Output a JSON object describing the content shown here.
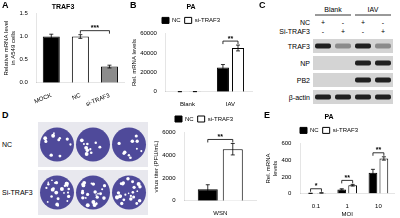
{
  "chart_data": [
    {
      "panel": "A",
      "type": "bar",
      "title": "TRAF3",
      "categories": [
        "MOCK",
        "NC",
        "si-TRAF3"
      ],
      "values": [
        1.0,
        1.0,
        0.35
      ],
      "errors": [
        0.05,
        0.04,
        0.03
      ],
      "colors": [
        "#000000",
        "#ffffff",
        "#8c8c8c"
      ],
      "y_label": "Relative mRNA level in A549 cells",
      "ylim": [
        0,
        1.5
      ],
      "yticks": [
        {
          "value": 0,
          "label": "0.0"
        },
        {
          "value": 0.5,
          "label": "0.5"
        },
        {
          "value": 1,
          "label": "1.0"
        },
        {
          "value": 1.5,
          "label": "1.5"
        }
      ],
      "annotations": [
        {
          "text": "***",
          "from": "NC",
          "to": "si-TRAF3"
        }
      ]
    },
    {
      "panel": "B",
      "type": "bar",
      "title": "PA",
      "categories": [
        "Blank",
        "IAV"
      ],
      "series": [
        {
          "name": "NC",
          "color": "#000000",
          "values": [
            150,
            25000
          ],
          "errors": [
            50,
            3000
          ]
        },
        {
          "name": "si-TRAF3",
          "color": "#ffffff",
          "values": [
            200,
            45000
          ],
          "errors": [
            60,
            3000
          ]
        }
      ],
      "y_label": "Rel. mRNA levels",
      "ylim": [
        0,
        60000
      ],
      "yticks": [
        0,
        20000,
        40000,
        60000
      ],
      "legend": "top",
      "annotations": [
        {
          "text": "**",
          "category": "IAV"
        }
      ]
    },
    {
      "type": "bar",
      "categories": [
        "WSN"
      ],
      "series": [
        {
          "name": "NC",
          "color": "#000000",
          "values": [
            1000
          ],
          "errors": [
            400
          ]
        },
        {
          "name": "si-TRAF3",
          "color": "#ffffff",
          "values": [
            4500
          ],
          "errors": [
            500
          ]
        }
      ],
      "y_label": "virus titer (PFU/mL)",
      "ylim": [
        0,
        6000
      ],
      "yticks": [
        0,
        2000,
        4000,
        6000
      ],
      "legend": "top",
      "annotations": [
        {
          "text": "**",
          "category": "WSN"
        }
      ]
    },
    {
      "panel": "E",
      "type": "bar",
      "title": "PA",
      "categories": [
        "0.1",
        "1",
        "10"
      ],
      "x_label": "MOI",
      "series": [
        {
          "name": "NC",
          "color": "#000000",
          "values": [
            3,
            50,
            250
          ],
          "errors": [
            1,
            8,
            40
          ]
        },
        {
          "name": "si-TRAF3",
          "color": "#ffffff",
          "values": [
            8,
            100,
            420
          ],
          "errors": [
            2,
            10,
            20
          ]
        }
      ],
      "y_label": "Rel. mRNA levels",
      "ylim": [
        0,
        600
      ],
      "yticks": [
        0,
        200,
        400,
        600
      ],
      "legend": "top",
      "annotations": [
        {
          "text": "*",
          "category": "0.1"
        },
        {
          "text": "**",
          "category": "1"
        },
        {
          "text": "**",
          "category": "10"
        }
      ]
    }
  ],
  "blot": {
    "panel": "C",
    "groups": [
      {
        "label": "Blank",
        "lanes": 2
      },
      {
        "label": "IAV",
        "lanes": 2
      }
    ],
    "conditions": [
      {
        "label": "NC",
        "marks": [
          "+",
          "-",
          "+",
          "-"
        ]
      },
      {
        "label": "Si-TRAF3",
        "marks": [
          "-",
          "+",
          "-",
          "+"
        ]
      }
    ],
    "rows": [
      {
        "label": "TRAF3",
        "bands": [
          1,
          0.4,
          1,
          0.4
        ]
      },
      {
        "label": "NP",
        "bands": [
          0,
          0,
          1,
          1
        ]
      },
      {
        "label": "PB2",
        "bands": [
          0,
          0,
          1,
          1
        ]
      },
      {
        "label": "β-actin",
        "bands": [
          1,
          1,
          1,
          1
        ]
      }
    ]
  },
  "plaques": {
    "panel": "D",
    "rows": [
      "NC",
      "Si-TRAF3"
    ]
  }
}
